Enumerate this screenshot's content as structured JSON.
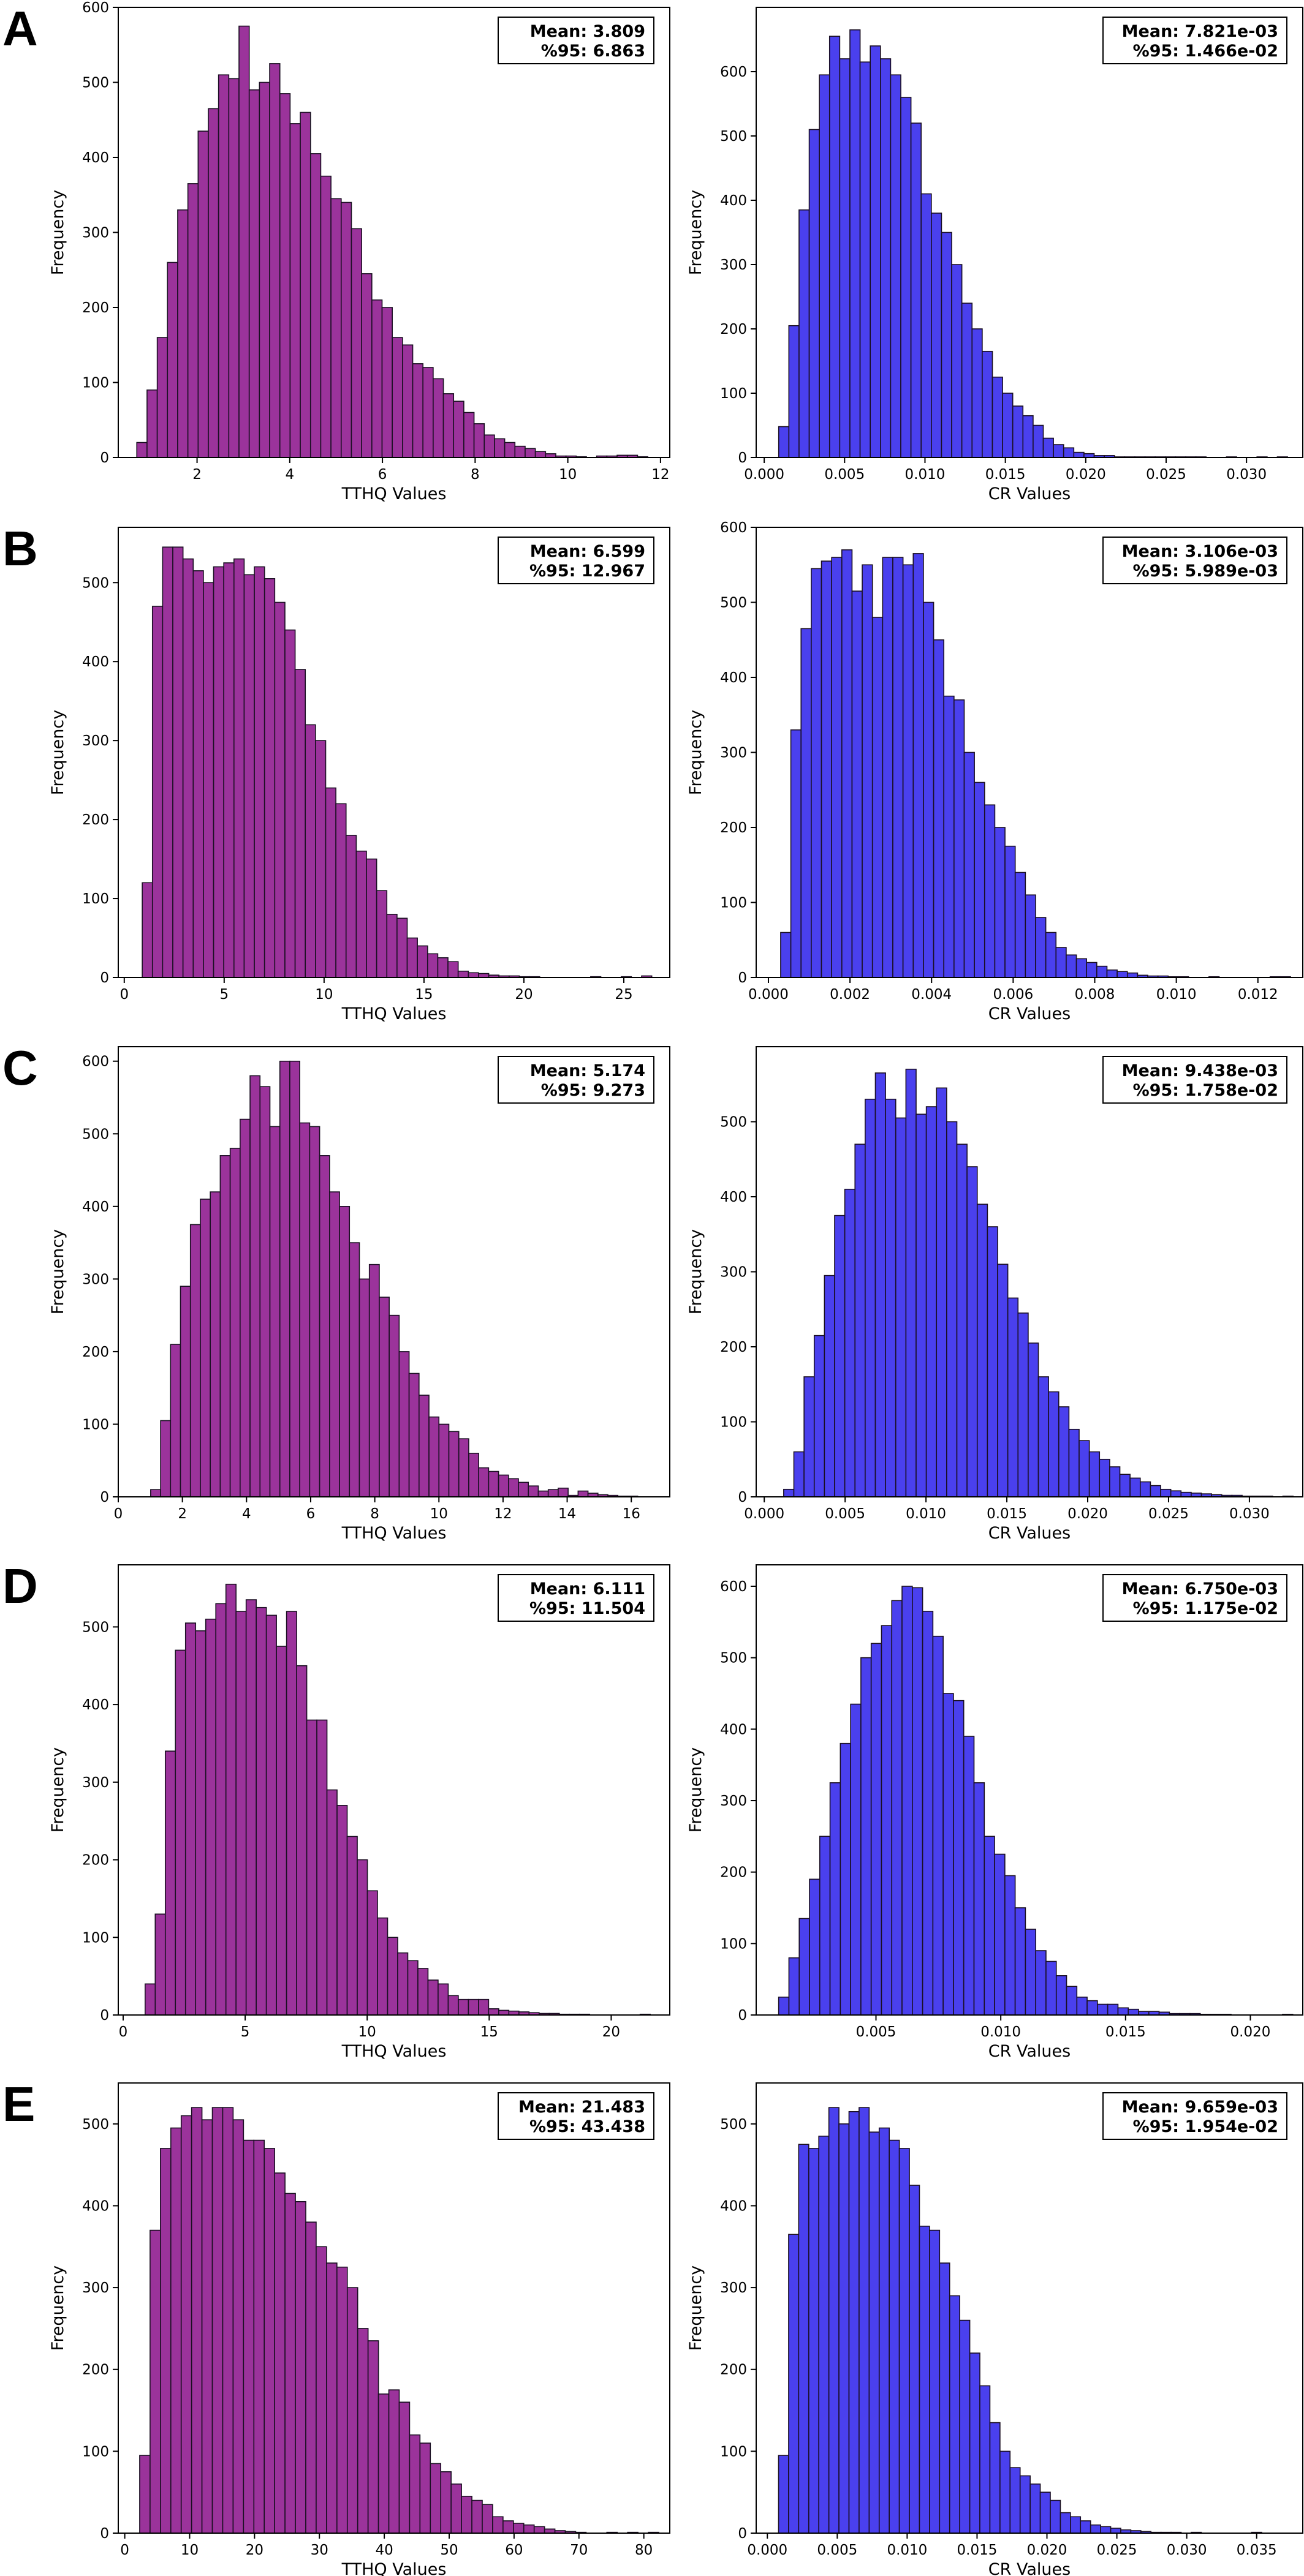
{
  "colors": {
    "tthq_bar": "#9b339b",
    "cr_bar": "#4a40ee",
    "bar_edge": "#1a0f22"
  },
  "chart_data": [
    {
      "panel": "A",
      "type": "bar",
      "title": "",
      "xlabel": "TTHQ Values",
      "ylabel": "Frequency",
      "bin_start": 0.7,
      "bin_width": 0.2205,
      "values": [
        20,
        90,
        160,
        260,
        330,
        365,
        435,
        465,
        510,
        505,
        575,
        490,
        500,
        525,
        485,
        445,
        460,
        405,
        375,
        345,
        340,
        305,
        245,
        210,
        200,
        160,
        150,
        125,
        120,
        105,
        85,
        75,
        60,
        45,
        30,
        25,
        20,
        15,
        12,
        8,
        5,
        2,
        2,
        1,
        0,
        2,
        2,
        3,
        3,
        1
      ],
      "xlim": [
        0.3,
        12.2
      ],
      "ylim": [
        0,
        600
      ],
      "xticks": [
        2,
        4,
        6,
        8,
        10,
        12
      ],
      "xtick_labels": [
        "2",
        "4",
        "6",
        "8",
        "10",
        "12"
      ],
      "yticks": [
        0,
        100,
        200,
        300,
        400,
        500,
        600
      ],
      "ytick_labels": [
        "0",
        "100",
        "200",
        "300",
        "400",
        "500",
        "600"
      ],
      "annotation": {
        "mean": "Mean: 3.809",
        "p95": "%95: 6.863"
      }
    },
    {
      "panel": "A",
      "type": "bar",
      "title": "",
      "xlabel": "CR Values",
      "ylabel": "Frequency",
      "bin_start": 0.0009,
      "bin_width": 0.000633,
      "values": [
        48,
        205,
        385,
        510,
        595,
        655,
        620,
        665,
        615,
        640,
        620,
        595,
        560,
        520,
        410,
        380,
        350,
        300,
        240,
        200,
        165,
        125,
        100,
        80,
        65,
        50,
        30,
        20,
        15,
        8,
        6,
        3,
        3,
        1,
        1,
        1,
        1,
        1,
        1,
        1,
        1,
        1,
        0,
        0,
        1,
        0,
        0,
        1,
        0,
        1
      ],
      "xlim": [
        -0.0005,
        0.0335
      ],
      "ylim": [
        0,
        700
      ],
      "xticks": [
        0,
        0.005,
        0.01,
        0.015,
        0.02,
        0.025,
        0.03
      ],
      "xtick_labels": [
        "0.000",
        "0.005",
        "0.010",
        "0.015",
        "0.020",
        "0.025",
        "0.030"
      ],
      "yticks": [
        0,
        100,
        200,
        300,
        400,
        500,
        600
      ],
      "ytick_labels": [
        "0",
        "100",
        "200",
        "300",
        "400",
        "500",
        "600"
      ],
      "annotation": {
        "mean": "Mean: 7.821e-03",
        "p95": "%95: 1.466e-02"
      }
    },
    {
      "panel": "B",
      "type": "bar",
      "title": "",
      "xlabel": "TTHQ Values",
      "ylabel": "Frequency",
      "bin_start": 0.9,
      "bin_width": 0.51,
      "values": [
        120,
        470,
        545,
        545,
        530,
        515,
        500,
        520,
        525,
        530,
        510,
        520,
        505,
        475,
        440,
        390,
        320,
        300,
        240,
        220,
        180,
        160,
        150,
        110,
        80,
        75,
        50,
        40,
        30,
        25,
        20,
        8,
        6,
        5,
        3,
        2,
        2,
        1,
        1,
        0,
        0,
        0,
        0,
        0,
        1,
        0,
        0,
        1,
        0,
        2
      ],
      "xlim": [
        -0.3,
        27.3
      ],
      "ylim": [
        0,
        570
      ],
      "xticks": [
        0,
        5,
        10,
        15,
        20,
        25
      ],
      "xtick_labels": [
        "0",
        "5",
        "10",
        "15",
        "20",
        "25"
      ],
      "yticks": [
        0,
        100,
        200,
        300,
        400,
        500
      ],
      "ytick_labels": [
        "0",
        "100",
        "200",
        "300",
        "400",
        "500"
      ],
      "annotation": {
        "mean": "Mean: 6.599",
        "p95": "%95: 12.967"
      }
    },
    {
      "panel": "B",
      "type": "bar",
      "title": "",
      "xlabel": "CR Values",
      "ylabel": "Frequency",
      "bin_start": 0.0003,
      "bin_width": 0.00025,
      "values": [
        60,
        330,
        465,
        545,
        555,
        560,
        570,
        515,
        550,
        480,
        560,
        560,
        550,
        565,
        500,
        450,
        375,
        370,
        300,
        260,
        230,
        200,
        175,
        140,
        110,
        80,
        60,
        40,
        30,
        25,
        20,
        15,
        10,
        8,
        6,
        3,
        2,
        2,
        1,
        1,
        0,
        0,
        1,
        0,
        0,
        0,
        0,
        0,
        1,
        1
      ],
      "xlim": [
        -0.0003,
        0.0131
      ],
      "ylim": [
        0,
        600
      ],
      "xticks": [
        0,
        0.002,
        0.004,
        0.006,
        0.008,
        0.01,
        0.012
      ],
      "xtick_labels": [
        "0.000",
        "0.002",
        "0.004",
        "0.006",
        "0.008",
        "0.010",
        "0.012"
      ],
      "yticks": [
        0,
        100,
        200,
        300,
        400,
        500,
        600
      ],
      "ytick_labels": [
        "0",
        "100",
        "200",
        "300",
        "400",
        "500",
        "600"
      ],
      "annotation": {
        "mean": "Mean: 3.106e-03",
        "p95": "%95: 5.989e-03"
      }
    },
    {
      "panel": "C",
      "type": "bar",
      "title": "",
      "xlabel": "TTHQ Values",
      "ylabel": "Frequency",
      "bin_start": 0.7,
      "bin_width": 0.31,
      "values": [
        0,
        10,
        105,
        210,
        290,
        375,
        410,
        420,
        470,
        480,
        520,
        580,
        565,
        510,
        600,
        600,
        515,
        510,
        470,
        420,
        400,
        350,
        300,
        320,
        275,
        250,
        200,
        170,
        140,
        110,
        100,
        90,
        80,
        60,
        40,
        35,
        30,
        25,
        20,
        15,
        8,
        10,
        12,
        2,
        8,
        5,
        3,
        2,
        1,
        1
      ],
      "xlim": [
        0,
        17.2
      ],
      "ylim": [
        0,
        620
      ],
      "xticks": [
        0,
        2,
        4,
        6,
        8,
        10,
        12,
        14,
        16
      ],
      "xtick_labels": [
        "0",
        "2",
        "4",
        "6",
        "8",
        "10",
        "12",
        "14",
        "16"
      ],
      "yticks": [
        0,
        100,
        200,
        300,
        400,
        500,
        600
      ],
      "ytick_labels": [
        "0",
        "100",
        "200",
        "300",
        "400",
        "500",
        "600"
      ],
      "annotation": {
        "mean": "Mean: 5.174",
        "p95": "%95: 9.273"
      }
    },
    {
      "panel": "C",
      "type": "bar",
      "title": "",
      "xlabel": "CR Values",
      "ylabel": "Frequency",
      "bin_start": 0.0012,
      "bin_width": 0.00063,
      "values": [
        10,
        60,
        160,
        215,
        295,
        375,
        410,
        470,
        530,
        565,
        530,
        505,
        570,
        510,
        520,
        545,
        500,
        470,
        440,
        390,
        360,
        310,
        265,
        245,
        205,
        160,
        140,
        120,
        90,
        75,
        60,
        50,
        40,
        30,
        25,
        20,
        15,
        10,
        8,
        6,
        5,
        4,
        3,
        2,
        2,
        1,
        1,
        1,
        0,
        1
      ],
      "xlim": [
        -0.0005,
        0.0333
      ],
      "ylim": [
        0,
        600
      ],
      "xticks": [
        0,
        0.005,
        0.01,
        0.015,
        0.02,
        0.025,
        0.03
      ],
      "xtick_labels": [
        "0.000",
        "0.005",
        "0.010",
        "0.015",
        "0.020",
        "0.025",
        "0.030"
      ],
      "yticks": [
        0,
        100,
        200,
        300,
        400,
        500
      ],
      "ytick_labels": [
        "0",
        "100",
        "200",
        "300",
        "400",
        "500"
      ],
      "annotation": {
        "mean": "Mean: 9.438e-03",
        "p95": "%95: 1.758e-02"
      }
    },
    {
      "panel": "D",
      "type": "bar",
      "title": "",
      "xlabel": "TTHQ Values",
      "ylabel": "Frequency",
      "bin_start": 0.9,
      "bin_width": 0.414,
      "values": [
        40,
        130,
        340,
        470,
        505,
        495,
        510,
        530,
        555,
        520,
        535,
        525,
        515,
        475,
        520,
        450,
        380,
        380,
        290,
        270,
        230,
        200,
        160,
        125,
        100,
        80,
        70,
        60,
        45,
        40,
        25,
        20,
        20,
        20,
        8,
        6,
        5,
        4,
        3,
        2,
        2,
        1,
        1,
        1,
        0,
        0,
        0,
        0,
        0,
        1
      ],
      "xlim": [
        -0.2,
        22.4
      ],
      "ylim": [
        0,
        580
      ],
      "xticks": [
        0,
        5,
        10,
        15,
        20
      ],
      "xtick_labels": [
        "0",
        "5",
        "10",
        "15",
        "20"
      ],
      "yticks": [
        0,
        100,
        200,
        300,
        400,
        500
      ],
      "ytick_labels": [
        "0",
        "100",
        "200",
        "300",
        "400",
        "500"
      ],
      "annotation": {
        "mean": "Mean: 6.111",
        "p95": "%95: 11.504"
      }
    },
    {
      "panel": "D",
      "type": "bar",
      "title": "",
      "xlabel": "CR Values",
      "ylabel": "Frequency",
      "bin_start": 0.0011,
      "bin_width": 0.000412,
      "values": [
        25,
        80,
        135,
        190,
        250,
        325,
        380,
        435,
        500,
        520,
        545,
        580,
        600,
        598,
        565,
        530,
        450,
        440,
        390,
        325,
        250,
        225,
        195,
        150,
        120,
        90,
        75,
        55,
        40,
        25,
        20,
        15,
        15,
        10,
        8,
        5,
        5,
        4,
        2,
        2,
        2,
        1,
        1,
        1,
        0,
        0,
        0,
        0,
        0,
        1
      ],
      "xlim": [
        0.0002,
        0.0221
      ],
      "ylim": [
        0,
        630
      ],
      "xticks": [
        0.005,
        0.01,
        0.015,
        0.02
      ],
      "xtick_labels": [
        "0.005",
        "0.010",
        "0.015",
        "0.020"
      ],
      "yticks": [
        0,
        100,
        200,
        300,
        400,
        500,
        600
      ],
      "ytick_labels": [
        "0",
        "100",
        "200",
        "300",
        "400",
        "500",
        "600"
      ],
      "annotation": {
        "mean": "Mean: 6.750e-03",
        "p95": "%95: 1.175e-02"
      }
    },
    {
      "panel": "E",
      "type": "bar",
      "title": "",
      "xlabel": "TTHQ Values",
      "ylabel": "Frequency",
      "bin_start": 2.3,
      "bin_width": 1.6,
      "values": [
        95,
        370,
        470,
        495,
        510,
        520,
        505,
        520,
        520,
        505,
        480,
        480,
        470,
        440,
        415,
        405,
        380,
        350,
        330,
        325,
        300,
        250,
        235,
        170,
        175,
        160,
        120,
        110,
        85,
        75,
        60,
        45,
        40,
        35,
        20,
        15,
        12,
        10,
        8,
        5,
        3,
        2,
        1,
        0,
        0,
        1,
        0,
        1,
        0,
        1
      ],
      "xlim": [
        -1,
        84
      ],
      "ylim": [
        0,
        550
      ],
      "xticks": [
        0,
        10,
        20,
        30,
        40,
        50,
        60,
        70,
        80
      ],
      "xtick_labels": [
        "0",
        "10",
        "20",
        "30",
        "40",
        "50",
        "60",
        "70",
        "80"
      ],
      "yticks": [
        0,
        100,
        200,
        300,
        400,
        500
      ],
      "ytick_labels": [
        "0",
        "100",
        "200",
        "300",
        "400",
        "500"
      ],
      "annotation": {
        "mean": "Mean: 21.483",
        "p95": "%95: 43.438"
      }
    },
    {
      "panel": "E",
      "type": "bar",
      "title": "",
      "xlabel": "CR Values",
      "ylabel": "Frequency",
      "bin_start": 0.0008,
      "bin_width": 0.00072,
      "values": [
        95,
        365,
        475,
        470,
        485,
        520,
        500,
        515,
        520,
        490,
        495,
        480,
        470,
        425,
        375,
        370,
        330,
        290,
        260,
        220,
        180,
        135,
        100,
        80,
        70,
        60,
        50,
        40,
        25,
        20,
        15,
        10,
        8,
        6,
        4,
        3,
        2,
        1,
        1,
        1,
        0,
        1,
        0,
        0,
        0,
        0,
        0,
        1,
        0,
        0
      ],
      "xlim": [
        -0.0008,
        0.0383
      ],
      "ylim": [
        0,
        550
      ],
      "xticks": [
        0,
        0.005,
        0.01,
        0.015,
        0.02,
        0.025,
        0.03,
        0.035
      ],
      "xtick_labels": [
        "0.000",
        "0.005",
        "0.010",
        "0.015",
        "0.020",
        "0.025",
        "0.030",
        "0.035"
      ],
      "yticks": [
        0,
        100,
        200,
        300,
        400,
        500
      ],
      "ytick_labels": [
        "0",
        "100",
        "200",
        "300",
        "400",
        "500"
      ],
      "annotation": {
        "mean": "Mean: 9.659e-03",
        "p95": "%95: 1.954e-02"
      }
    }
  ]
}
